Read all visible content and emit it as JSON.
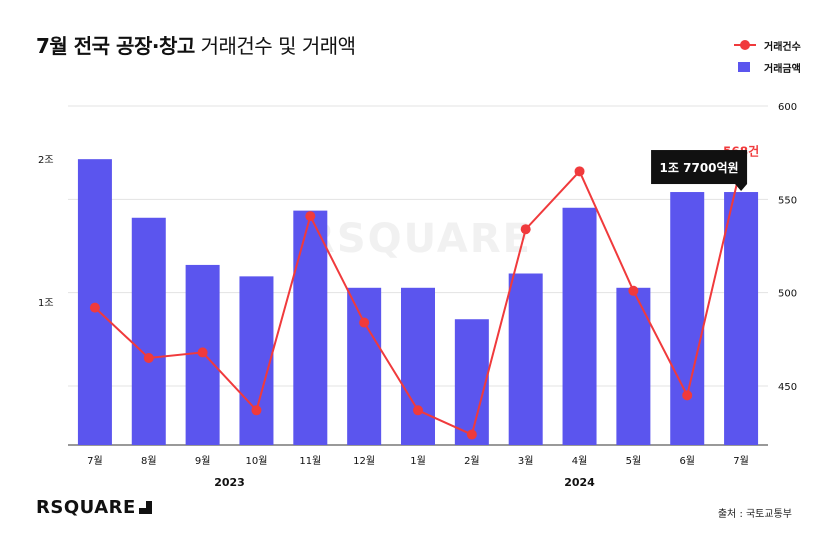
{
  "title_bold": "7월 전국 공장·창고",
  "title_rest": "거래건수 및 거래액",
  "legend": {
    "count_label": "거래건수",
    "amount_label": "거래금액"
  },
  "watermark": "RSQUARE",
  "logo_text": "RSQUARE",
  "source": "출처 : 국토교통부",
  "colors": {
    "bar": "#5b55ee",
    "line": "#f03a3c",
    "grid": "#e3e3e3"
  },
  "chart_data": {
    "type": "bar+line",
    "categories": [
      "7월",
      "8월",
      "9월",
      "10월",
      "11월",
      "12월",
      "1월",
      "2월",
      "3월",
      "4월",
      "5월",
      "6월",
      "7월"
    ],
    "years": [
      {
        "label": "2023",
        "from": 0,
        "to": 5
      },
      {
        "label": "2024",
        "from": 6,
        "to": 12
      }
    ],
    "left_axis": {
      "ticks": [
        {
          "value": 10000,
          "label": "1조"
        },
        {
          "value": 20000,
          "label": "2조"
        }
      ],
      "unit": "억원",
      "range": [
        0,
        23720
      ]
    },
    "right_axis": {
      "ticks": [
        {
          "value": 450,
          "label": "450"
        },
        {
          "value": 500,
          "label": "500"
        },
        {
          "value": 550,
          "label": "550"
        },
        {
          "value": 600,
          "label": "600"
        }
      ],
      "range": [
        418.4,
        600
      ]
    },
    "series": [
      {
        "name": "거래금액",
        "type": "bar",
        "axis": "left",
        "values": [
          20000,
          15900,
          12600,
          11800,
          16400,
          11000,
          11000,
          8800,
          12000,
          16600,
          11000,
          17700,
          17700
        ]
      },
      {
        "name": "거래건수",
        "type": "line",
        "axis": "right",
        "values": [
          492,
          465,
          468,
          437,
          541,
          484,
          437,
          424,
          534,
          565,
          501,
          445,
          568
        ]
      }
    ],
    "annotations": [
      {
        "index": 12,
        "series": "거래건수",
        "text": "568건"
      },
      {
        "index": 12,
        "series": "거래금액",
        "text": "1조 7700억원"
      }
    ],
    "grid": true,
    "legend_position": "top-right"
  }
}
